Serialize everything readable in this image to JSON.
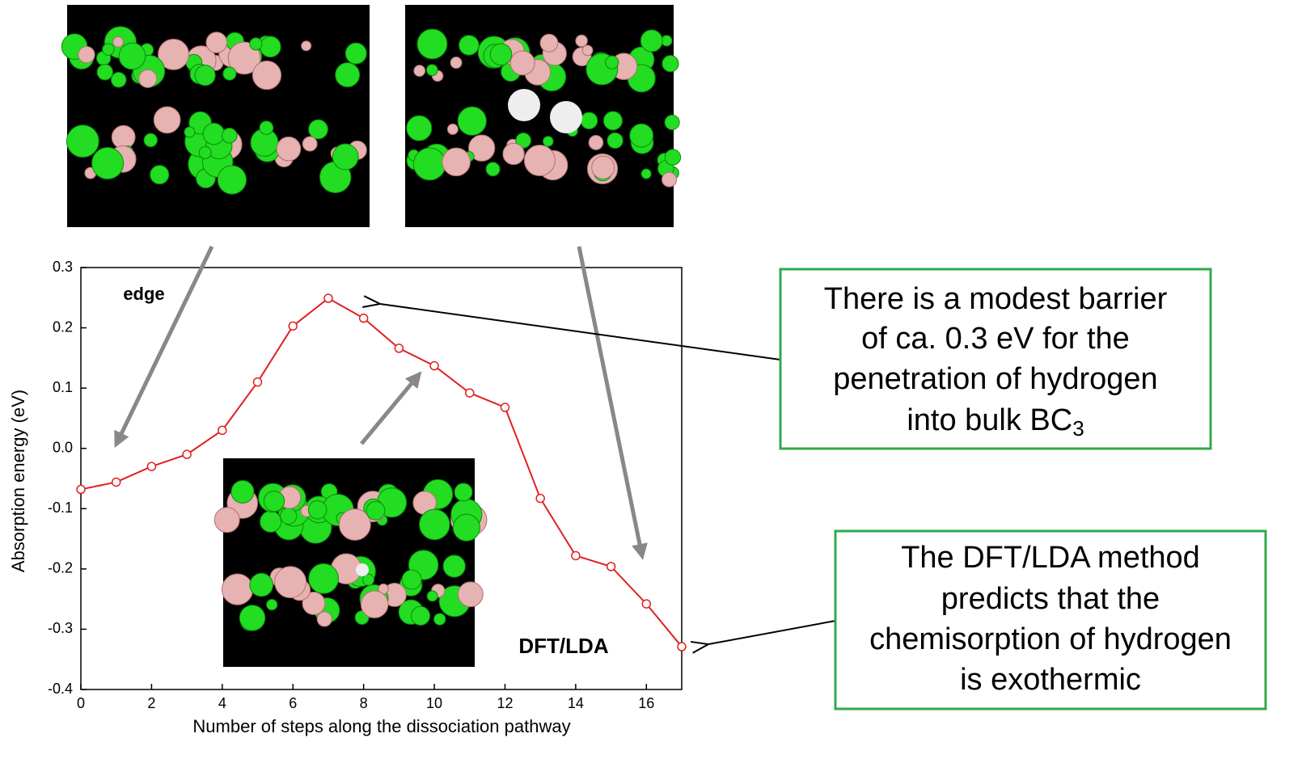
{
  "chart_data": {
    "type": "line",
    "x_label": "Number of steps along the dissociation pathway",
    "y_label": "Absorption energy (eV)",
    "annotations": [
      "edge",
      "DFT/LDA"
    ],
    "x": [
      0,
      1,
      2,
      3,
      4,
      5,
      6,
      7,
      8,
      9,
      10,
      11,
      12,
      13,
      14,
      15,
      16,
      17
    ],
    "series": [
      {
        "color": "#e02020",
        "values": [
          -0.068,
          -0.056,
          -0.03,
          -0.01,
          0.03,
          0.11,
          0.203,
          0.249,
          0.216,
          0.166,
          0.137,
          0.092,
          0.068,
          -0.083,
          -0.178,
          -0.196,
          -0.258,
          -0.329
        ]
      }
    ],
    "xlim": [
      0,
      17
    ],
    "xticks": [
      0,
      2,
      4,
      6,
      8,
      10,
      12,
      14,
      16
    ],
    "ylim": [
      -0.4,
      0.3
    ],
    "yticks": [
      -0.4,
      -0.3,
      -0.2,
      -0.1,
      {
        "value": 0,
        "label": "0.0"
      },
      0.1,
      0.2,
      0.3
    ]
  },
  "notes": [
    {
      "lines": [
        "There is a modest barrier",
        "of ca. 0.3 eV for the",
        "penetration of hydrogen",
        "into bulk BC"
      ],
      "subscript": "3"
    },
    {
      "lines": [
        "The DFT/LDA method",
        "predicts that the",
        "chemisorption of hydrogen",
        "is exothermic"
      ]
    }
  ]
}
